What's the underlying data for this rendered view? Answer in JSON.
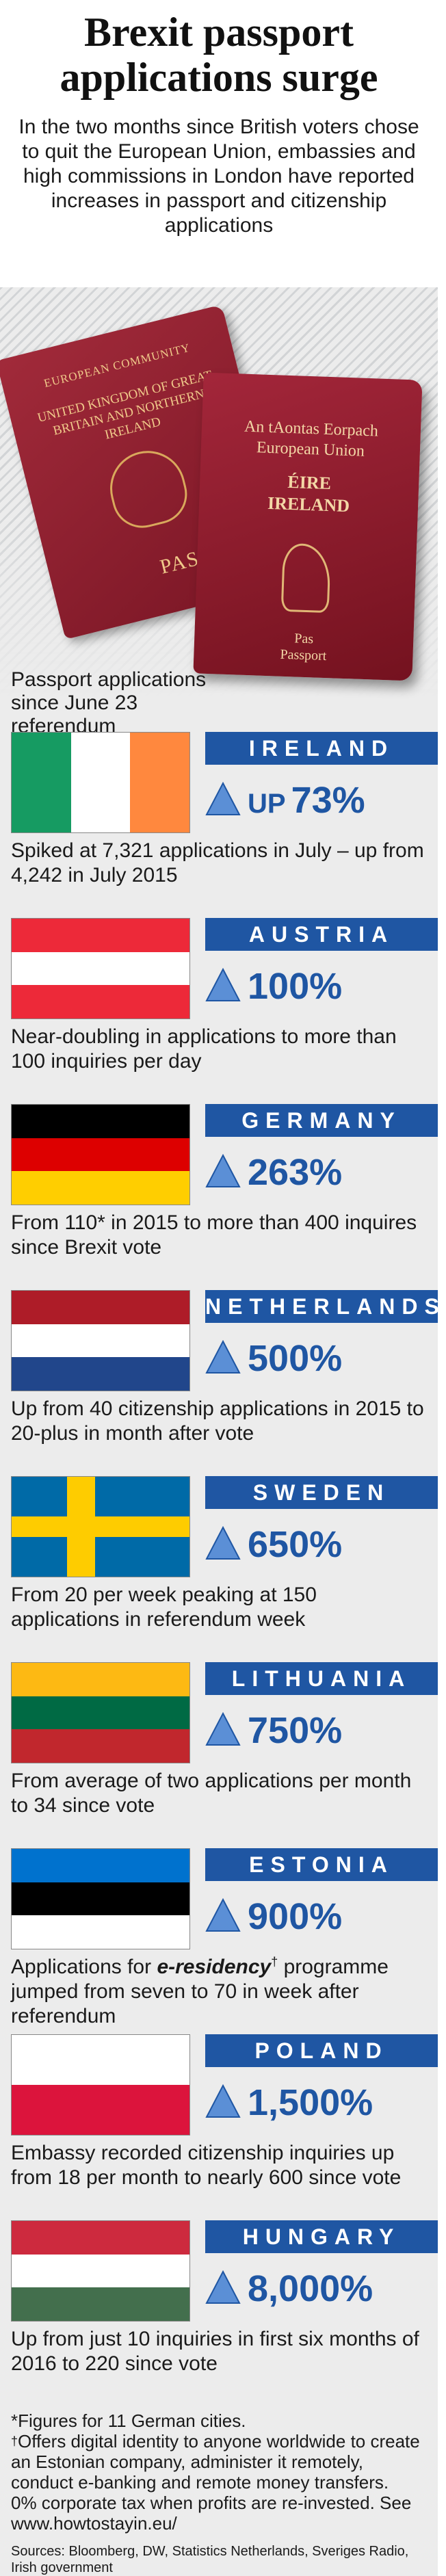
{
  "header": {
    "title_line1": "Brexit passport",
    "title_line2": "applications surge",
    "intro": "In the two months since British voters chose to quit the European Union, embassies and high commissions in London have reported increases in passport and citizenship applications"
  },
  "passports": {
    "uk": {
      "line1": "EUROPEAN COMMUNITY",
      "line2": "UNITED KINGDOM OF GREAT BRITAIN AND NORTHERN IRELAND",
      "line3": "PASS"
    },
    "ireland": {
      "line1": "An tAontas Eorpach",
      "line1b": "European Union",
      "line2": "ÉIRE",
      "line2b": "IRELAND",
      "line3": "Pas",
      "line3b": "Passport"
    }
  },
  "caption": "Passport applications since June 23 referendum",
  "colors": {
    "accent": "#1f56a3",
    "background": "#ececec"
  },
  "countries": [
    {
      "name": "IRELAND",
      "up_label": "UP",
      "value": "73%",
      "desc": "Spiked at 7,321 applications in July – up from 4,242 in July 2015",
      "flag": [
        "#169b62",
        "#ffffff",
        "#ff883e"
      ],
      "flag_dir": "vertical"
    },
    {
      "name": "AUSTRIA",
      "value": "100%",
      "desc": "Near-doubling in applications to more than 100 inquiries per day",
      "flag": [
        "#ed2939",
        "#ffffff",
        "#ed2939"
      ],
      "flag_dir": "horizontal"
    },
    {
      "name": "GERMANY",
      "value": "263%",
      "desc": "From 110* in 2015 to more than 400 inquires since Brexit vote",
      "flag": [
        "#000000",
        "#dd0000",
        "#ffce00"
      ],
      "flag_dir": "horizontal"
    },
    {
      "name": "NETHERLANDS",
      "value": "500%",
      "desc": "Up from 40 citizenship applications in 2015 to 20-plus in month after vote",
      "flag": [
        "#ae1c28",
        "#ffffff",
        "#21468b"
      ],
      "flag_dir": "horizontal"
    },
    {
      "name": "SWEDEN",
      "value": "650%",
      "desc": "From 20 per week peaking at 150 applications in referendum week",
      "flag": [
        "#006aa7",
        "#fecc00"
      ],
      "flag_dir": "cross"
    },
    {
      "name": "LITHUANIA",
      "value": "750%",
      "desc": "From average of two applications per month to 34 since vote",
      "flag": [
        "#fdb913",
        "#006a44",
        "#c1272d"
      ],
      "flag_dir": "horizontal"
    },
    {
      "name": "ESTONIA",
      "value": "900%",
      "desc_pre": "Applications for ",
      "desc_em": "e-residency",
      "desc_sup": "†",
      "desc_post": " programme jumped from seven to 70 in week after referendum",
      "flag": [
        "#0072ce",
        "#000000",
        "#ffffff"
      ],
      "flag_dir": "horizontal"
    },
    {
      "name": "POLAND",
      "value": "1,500%",
      "desc": "Embassy recorded citizenship inquiries up from 18 per month to nearly 600 since vote",
      "flag": [
        "#ffffff",
        "#dc143c"
      ],
      "flag_dir": "horizontal"
    },
    {
      "name": "HUNGARY",
      "value": "8,000%",
      "desc": "Up from just 10 inquiries in first six months of 2016 to 220 since vote",
      "flag": [
        "#cd2a3e",
        "#ffffff",
        "#436f4d"
      ],
      "flag_dir": "horizontal"
    }
  ],
  "notes": {
    "asterisk": "*Figures for 11 German cities.",
    "dagger_mark": "†",
    "dagger": "Offers digital identity to anyone worldwide to create an Estonian company, administer it remotely, conduct e-banking and remote money transfers.",
    "tax": "0% corporate tax when profits are re-invested. See www.howtostayin.eu/",
    "sources": "Sources: Bloomberg, DW, Statistics Netherlands, Sveriges Radio, Irish government"
  }
}
